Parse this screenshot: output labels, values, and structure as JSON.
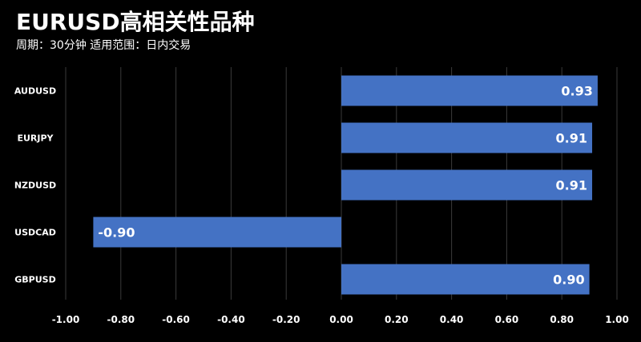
{
  "title": "EURUSD高相关性品种",
  "subtitle": "周期：30分钟 适用范围：日内交易",
  "colors": {
    "background": "#000000",
    "bar": "#4472C4",
    "grid": "#3a3a3a",
    "text": "#ffffff"
  },
  "chart_data": {
    "type": "bar",
    "orientation": "horizontal",
    "categories": [
      "AUDUSD",
      "EURJPY",
      "NZDUSD",
      "USDCAD",
      "GBPUSD"
    ],
    "values": [
      0.93,
      0.91,
      0.91,
      -0.9,
      0.9
    ],
    "value_labels": [
      "0.93",
      "0.91",
      "0.91",
      "-0.90",
      "0.90"
    ],
    "xlim": [
      -1.0,
      1.0
    ],
    "ticks": [
      -1.0,
      -0.8,
      -0.6,
      -0.4,
      -0.2,
      0.0,
      0.2,
      0.4,
      0.6,
      0.8,
      1.0
    ],
    "tick_labels": [
      "-1.00",
      "-0.80",
      "-0.60",
      "-0.40",
      "-0.20",
      "0.00",
      "0.20",
      "0.40",
      "0.60",
      "0.80",
      "1.00"
    ],
    "grid": true,
    "legend": "none"
  }
}
